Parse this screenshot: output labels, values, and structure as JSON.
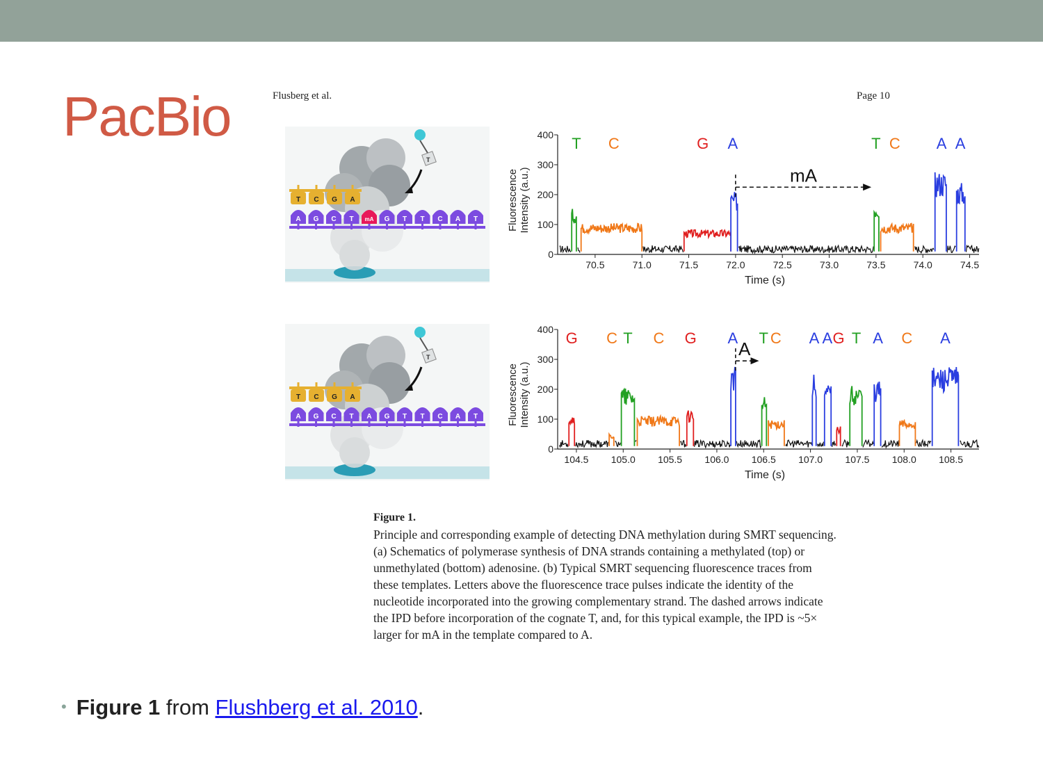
{
  "slide": {
    "title": "PacBio",
    "bullet": {
      "bold": "Figure 1",
      "middle": " from ",
      "link": "Flushberg et al. 2010",
      "end": "."
    }
  },
  "document": {
    "header_left": "Flusberg et al.",
    "header_right": "Page 10",
    "caption_title": "Figure 1.",
    "caption_lines": [
      "Principle and corresponding example of detecting DNA methylation during SMRT sequencing.",
      "(a) Schematics of polymerase synthesis of DNA strands containing a methylated (top) or",
      "unmethylated (bottom) adenosine. (b) Typical SMRT sequencing fluorescence traces from",
      "these templates. Letters above the fluorescence trace pulses indicate the identity of the",
      "nucleotide incorporated into the growing complementary strand. The dashed arrows indicate",
      "the IPD before incorporation of the cognate T, and, for this typical example, the IPD is ~5×",
      "larger for mA in the template compared to A."
    ]
  },
  "schematics": [
    {
      "panel": "A",
      "nucleotide_label": "T",
      "top_strand": [
        "T",
        "C",
        "G",
        "A"
      ],
      "bottom_strand": [
        "A",
        "G",
        "C",
        "T",
        "mA",
        "G",
        "T",
        "T",
        "C",
        "A",
        "T"
      ]
    },
    {
      "panel": "B",
      "nucleotide_label": "T",
      "top_strand": [
        "T",
        "C",
        "G",
        "A"
      ],
      "bottom_strand": [
        "A",
        "G",
        "C",
        "T",
        "A",
        "G",
        "T",
        "T",
        "C",
        "A",
        "T"
      ]
    }
  ],
  "colors": {
    "T": "#22a022",
    "C": "#f07818",
    "G": "#e02020",
    "A": "#2a3ee0",
    "baseline": "#111111",
    "title": "#d05a45",
    "topbar": "#92a299",
    "link": "#1a1aee"
  },
  "chart_data": [
    {
      "type": "line",
      "panel": "A",
      "ylabel": "Fluorescence Intensity (a.u.)",
      "xlabel": "Time (s)",
      "xlim": [
        70.1,
        74.6
      ],
      "ylim": [
        0,
        400
      ],
      "xticks": [
        "70.5",
        "71.0",
        "71.5",
        "72.0",
        "72.5",
        "73.0",
        "73.5",
        "74.0",
        "74.5"
      ],
      "yticks": [
        "0",
        "100",
        "200",
        "300",
        "400"
      ],
      "annotation": {
        "label": "mA",
        "x_start": 72.0,
        "x_end": 73.45,
        "y": 225
      },
      "pulses": [
        {
          "base": "T",
          "start": 70.25,
          "end": 70.3,
          "level": 140
        },
        {
          "base": "C",
          "start": 70.35,
          "end": 71.0,
          "level": 95
        },
        {
          "base": "G",
          "start": 71.45,
          "end": 71.95,
          "level": 75
        },
        {
          "base": "A",
          "start": 71.95,
          "end": 72.02,
          "level": 190
        },
        {
          "base": "T",
          "start": 73.48,
          "end": 73.53,
          "level": 160
        },
        {
          "base": "C",
          "start": 73.55,
          "end": 73.9,
          "level": 95
        },
        {
          "base": "A",
          "start": 74.13,
          "end": 74.25,
          "level": 255
        },
        {
          "base": "A",
          "start": 74.36,
          "end": 74.45,
          "level": 220
        }
      ],
      "letters": [
        {
          "text": "T",
          "x": 70.3
        },
        {
          "text": "C",
          "x": 70.7
        },
        {
          "text": "G",
          "x": 71.65
        },
        {
          "text": "A",
          "x": 71.97
        },
        {
          "text": "T",
          "x": 73.5
        },
        {
          "text": "C",
          "x": 73.7
        },
        {
          "text": "A",
          "x": 74.2
        },
        {
          "text": "A",
          "x": 74.4
        }
      ]
    },
    {
      "type": "line",
      "panel": "B",
      "ylabel": "Fluorescence Intensity (a.u.)",
      "xlabel": "Time (s)",
      "xlim": [
        104.3,
        108.8
      ],
      "ylim": [
        0,
        400
      ],
      "xticks": [
        "104.5",
        "105.0",
        "105.5",
        "106.0",
        "106.5",
        "107.0",
        "107.5",
        "108.0",
        "108.5"
      ],
      "yticks": [
        "0",
        "100",
        "200",
        "300",
        "400"
      ],
      "annotation": {
        "label": "A",
        "x_start": 106.2,
        "x_end": 106.45,
        "y": 295
      },
      "pulses": [
        {
          "base": "G",
          "start": 104.42,
          "end": 104.48,
          "level": 110
        },
        {
          "base": "C",
          "start": 104.85,
          "end": 104.9,
          "level": 45
        },
        {
          "base": "T",
          "start": 104.98,
          "end": 105.12,
          "level": 185
        },
        {
          "base": "C",
          "start": 105.15,
          "end": 105.6,
          "level": 100
        },
        {
          "base": "G",
          "start": 105.68,
          "end": 105.75,
          "level": 120
        },
        {
          "base": "A",
          "start": 106.15,
          "end": 106.2,
          "level": 250
        },
        {
          "base": "T",
          "start": 106.48,
          "end": 106.53,
          "level": 160
        },
        {
          "base": "C",
          "start": 106.55,
          "end": 106.72,
          "level": 90
        },
        {
          "base": "A",
          "start": 107.02,
          "end": 107.06,
          "level": 230
        },
        {
          "base": "A",
          "start": 107.15,
          "end": 107.22,
          "level": 200
        },
        {
          "base": "G",
          "start": 107.28,
          "end": 107.32,
          "level": 70
        },
        {
          "base": "T",
          "start": 107.42,
          "end": 107.55,
          "level": 195
        },
        {
          "base": "A",
          "start": 107.68,
          "end": 107.75,
          "level": 210
        },
        {
          "base": "C",
          "start": 107.95,
          "end": 108.12,
          "level": 90
        },
        {
          "base": "A",
          "start": 108.3,
          "end": 108.58,
          "level": 250
        }
      ],
      "letters": [
        {
          "text": "G",
          "x": 104.45
        },
        {
          "text": "C",
          "x": 104.88
        },
        {
          "text": "T",
          "x": 105.05
        },
        {
          "text": "C",
          "x": 105.38
        },
        {
          "text": "G",
          "x": 105.72
        },
        {
          "text": "A",
          "x": 106.17
        },
        {
          "text": "T",
          "x": 106.5
        },
        {
          "text": "C",
          "x": 106.63
        },
        {
          "text": "A",
          "x": 107.04
        },
        {
          "text": "A",
          "x": 107.18
        },
        {
          "text": "G",
          "x": 107.3
        },
        {
          "text": "T",
          "x": 107.49
        },
        {
          "text": "A",
          "x": 107.72
        },
        {
          "text": "C",
          "x": 108.03
        },
        {
          "text": "A",
          "x": 108.44
        }
      ]
    }
  ]
}
